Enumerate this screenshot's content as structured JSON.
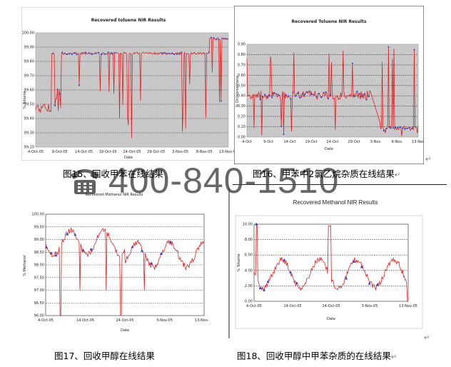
{
  "captions": {
    "fig15": "图15、回收甲苯在线结果",
    "fig16": "图16、甲苯中2氯乙烷杂质在线结果",
    "fig17": "图17、回收甲醇在线结果",
    "fig18": "图18、回收甲醇中甲苯杂质的在线结果"
  },
  "return_mark": "↵",
  "watermark": {
    "phone": "400-840-1510",
    "icon": "phone-icon"
  },
  "chart_data": [
    {
      "id": "fig15",
      "type": "line",
      "title": "Recovered toluene NIR Results",
      "xlabel": "Date",
      "ylabel": "% Toluene",
      "colors": {
        "line": "#e32020",
        "marker": "#2a3fd6",
        "plot_bg": "#c8c8c8"
      },
      "grid": true,
      "xtick_labels": [
        "4-Oct-05",
        "9-Oct-05",
        "14-Oct-05",
        "19-Oct-05",
        "24-Oct-05",
        "29-Oct-05",
        "3-Nov-05",
        "8-Nov-05",
        "13-Nov-05"
      ],
      "ytick_labels": [
        "100.00",
        "99.90",
        "99.80",
        "99.70",
        "99.60",
        "99.50",
        "99.40",
        "99.30",
        "99.20"
      ],
      "ylim": [
        99.2,
        100.0
      ]
    },
    {
      "id": "fig16",
      "type": "line",
      "title": "Recovered Toluene NIR Results",
      "xlabel": "Date",
      "ylabel": "% Dichloroethane",
      "colors": {
        "line": "#e32020",
        "marker": "#2a3fd6",
        "plot_bg": "#c8c8c8"
      },
      "grid": true,
      "xtick_labels": [
        "4-Oct",
        "9-Oct",
        "14-Oct",
        "19-Oct",
        "24-Oct",
        "29-Oct",
        "3-Nov",
        "8-Nov",
        "13-Nov"
      ],
      "ytick_labels": [
        "0.90",
        "0.80",
        "0.70",
        "0.60",
        "0.50",
        "0.40",
        "0.30",
        "0.20",
        "0.10",
        "0.00"
      ],
      "ylim": [
        0.0,
        0.9
      ]
    },
    {
      "id": "fig17",
      "type": "line",
      "title": "Recovered Methanol NIR Results",
      "xlabel": "Date",
      "ylabel": "% Methanol",
      "colors": {
        "line": "#e32020",
        "marker": "#2a3fd6",
        "plot_bg": "#ffffff"
      },
      "grid": true,
      "xtick_labels": [
        "4-Oct-05",
        "14-Oct-05",
        "24-Oct-05",
        "3-Nov-05",
        "13-Nov-05"
      ],
      "ytick_labels": [
        "100.00",
        "99.50",
        "99.00",
        "98.50",
        "98.00",
        "97.50",
        "97.00",
        "96.50",
        "96.00"
      ],
      "ylim": [
        96.0,
        100.0
      ]
    },
    {
      "id": "fig18",
      "type": "line",
      "title": "Recovered Methanol NIR Results",
      "xlabel": "Date",
      "ylabel": "% Toluene",
      "colors": {
        "line": "#e32020",
        "marker": "#2a3fd6",
        "plot_bg": "#ffffff"
      },
      "grid": true,
      "xtick_labels": [
        "4-Oct-05",
        "14-Oct-05",
        "24-Oct-05",
        "3-Nov-05",
        "13-Nov-05"
      ],
      "ytick_labels": [
        "10.00",
        "8.00",
        "6.00",
        "4.00",
        "2.00",
        "0.00"
      ],
      "ylim": [
        0.0,
        10.0
      ]
    }
  ]
}
